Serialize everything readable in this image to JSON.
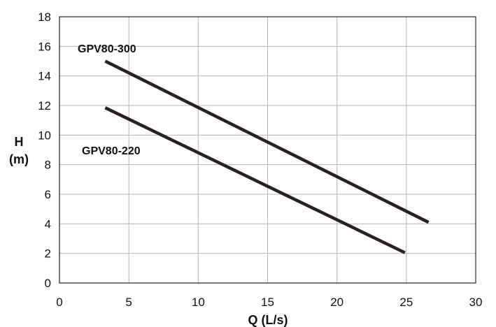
{
  "chart_data": {
    "type": "line",
    "xlabel": "Q (L/s)",
    "ylabel_line1": "H",
    "ylabel_line2": "(m)",
    "xlim": [
      0,
      30
    ],
    "ylim": [
      0,
      18
    ],
    "x_ticks": [
      0,
      5,
      10,
      15,
      20,
      25,
      30
    ],
    "y_ticks": [
      0,
      2,
      4,
      6,
      8,
      10,
      12,
      14,
      16,
      18
    ],
    "grid": true,
    "legend": "none",
    "line_color": "#2a2020",
    "series": [
      {
        "name": "GPV80-300",
        "x": [
          3.3,
          26.6
        ],
        "y": [
          15.0,
          4.1
        ]
      },
      {
        "name": "GPV80-220",
        "x": [
          3.3,
          24.9
        ],
        "y": [
          11.85,
          2.05
        ]
      }
    ]
  }
}
